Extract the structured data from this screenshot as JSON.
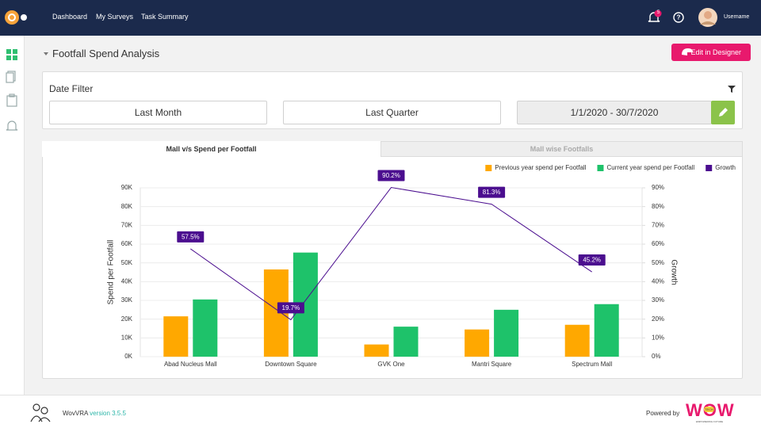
{
  "nav": {
    "links": [
      "Dashboard",
      "My Surveys",
      "Task Summary"
    ],
    "notification_count": 5,
    "username": "Username"
  },
  "header": {
    "title": "Footfall Spend Analysis",
    "button": "Edit in Designer"
  },
  "date_filter": {
    "title": "Date Filter",
    "options": [
      "Last Month",
      "Last Quarter"
    ],
    "range": "1/1/2020 - 30/7/2020"
  },
  "tabs": [
    "Mall v/s Spend per Footfall",
    "Mall wise Footfalls"
  ],
  "chart_data": {
    "type": "bar",
    "categories": [
      "Abad Nucleus Mall",
      "Downtown Square",
      "GVK One",
      "Mantri Square",
      "Spectrum Mall"
    ],
    "series": [
      {
        "name": "Previous year spend per Footfall",
        "color": "#ffa800",
        "values": [
          21500,
          46500,
          6500,
          14500,
          17000
        ]
      },
      {
        "name": "Current year spend per Footfall",
        "color": "#1ec26a",
        "values": [
          30500,
          55500,
          16000,
          25000,
          28000
        ]
      },
      {
        "name": "Growth",
        "color": "#4b0e8f",
        "type": "line",
        "axis": "y2",
        "values": [
          57.5,
          19.7,
          90.2,
          81.3,
          45.2
        ],
        "value_labels": [
          "57.5%",
          "19.7%",
          "90.2%",
          "81.3%",
          "45.2%"
        ]
      }
    ],
    "ylabel": "Spend per Footfall",
    "y2label": "Growth",
    "ylim": [
      0,
      90000
    ],
    "yticks": [
      {
        "value": 0,
        "label": "0K"
      },
      {
        "value": 10000,
        "label": "10K"
      },
      {
        "value": 20000,
        "label": "20K"
      },
      {
        "value": 30000,
        "label": "30K"
      },
      {
        "value": 40000,
        "label": "40K"
      },
      {
        "value": 50000,
        "label": "50K"
      },
      {
        "value": 60000,
        "label": "60K"
      },
      {
        "value": 70000,
        "label": "70K"
      },
      {
        "value": 80000,
        "label": "80K"
      },
      {
        "value": 90000,
        "label": "90K"
      }
    ],
    "y2lim": [
      0,
      90
    ],
    "y2ticks": [
      {
        "value": 0,
        "label": "0%"
      },
      {
        "value": 10,
        "label": "10%"
      },
      {
        "value": 20,
        "label": "20%"
      },
      {
        "value": 30,
        "label": "30%"
      },
      {
        "value": 40,
        "label": "40%"
      },
      {
        "value": 50,
        "label": "50%"
      },
      {
        "value": 60,
        "label": "60%"
      },
      {
        "value": 70,
        "label": "70%"
      },
      {
        "value": 80,
        "label": "80%"
      },
      {
        "value": 90,
        "label": "90%"
      }
    ],
    "grid": true,
    "legend": "top-right"
  },
  "footer": {
    "app": "WovVRA",
    "version": "version 3.5.5",
    "powered_by": "Powered by",
    "logo": "WOW",
    "logo_badge": "TECH",
    "logo_tagline": "EMPOWERING FUTURE"
  }
}
